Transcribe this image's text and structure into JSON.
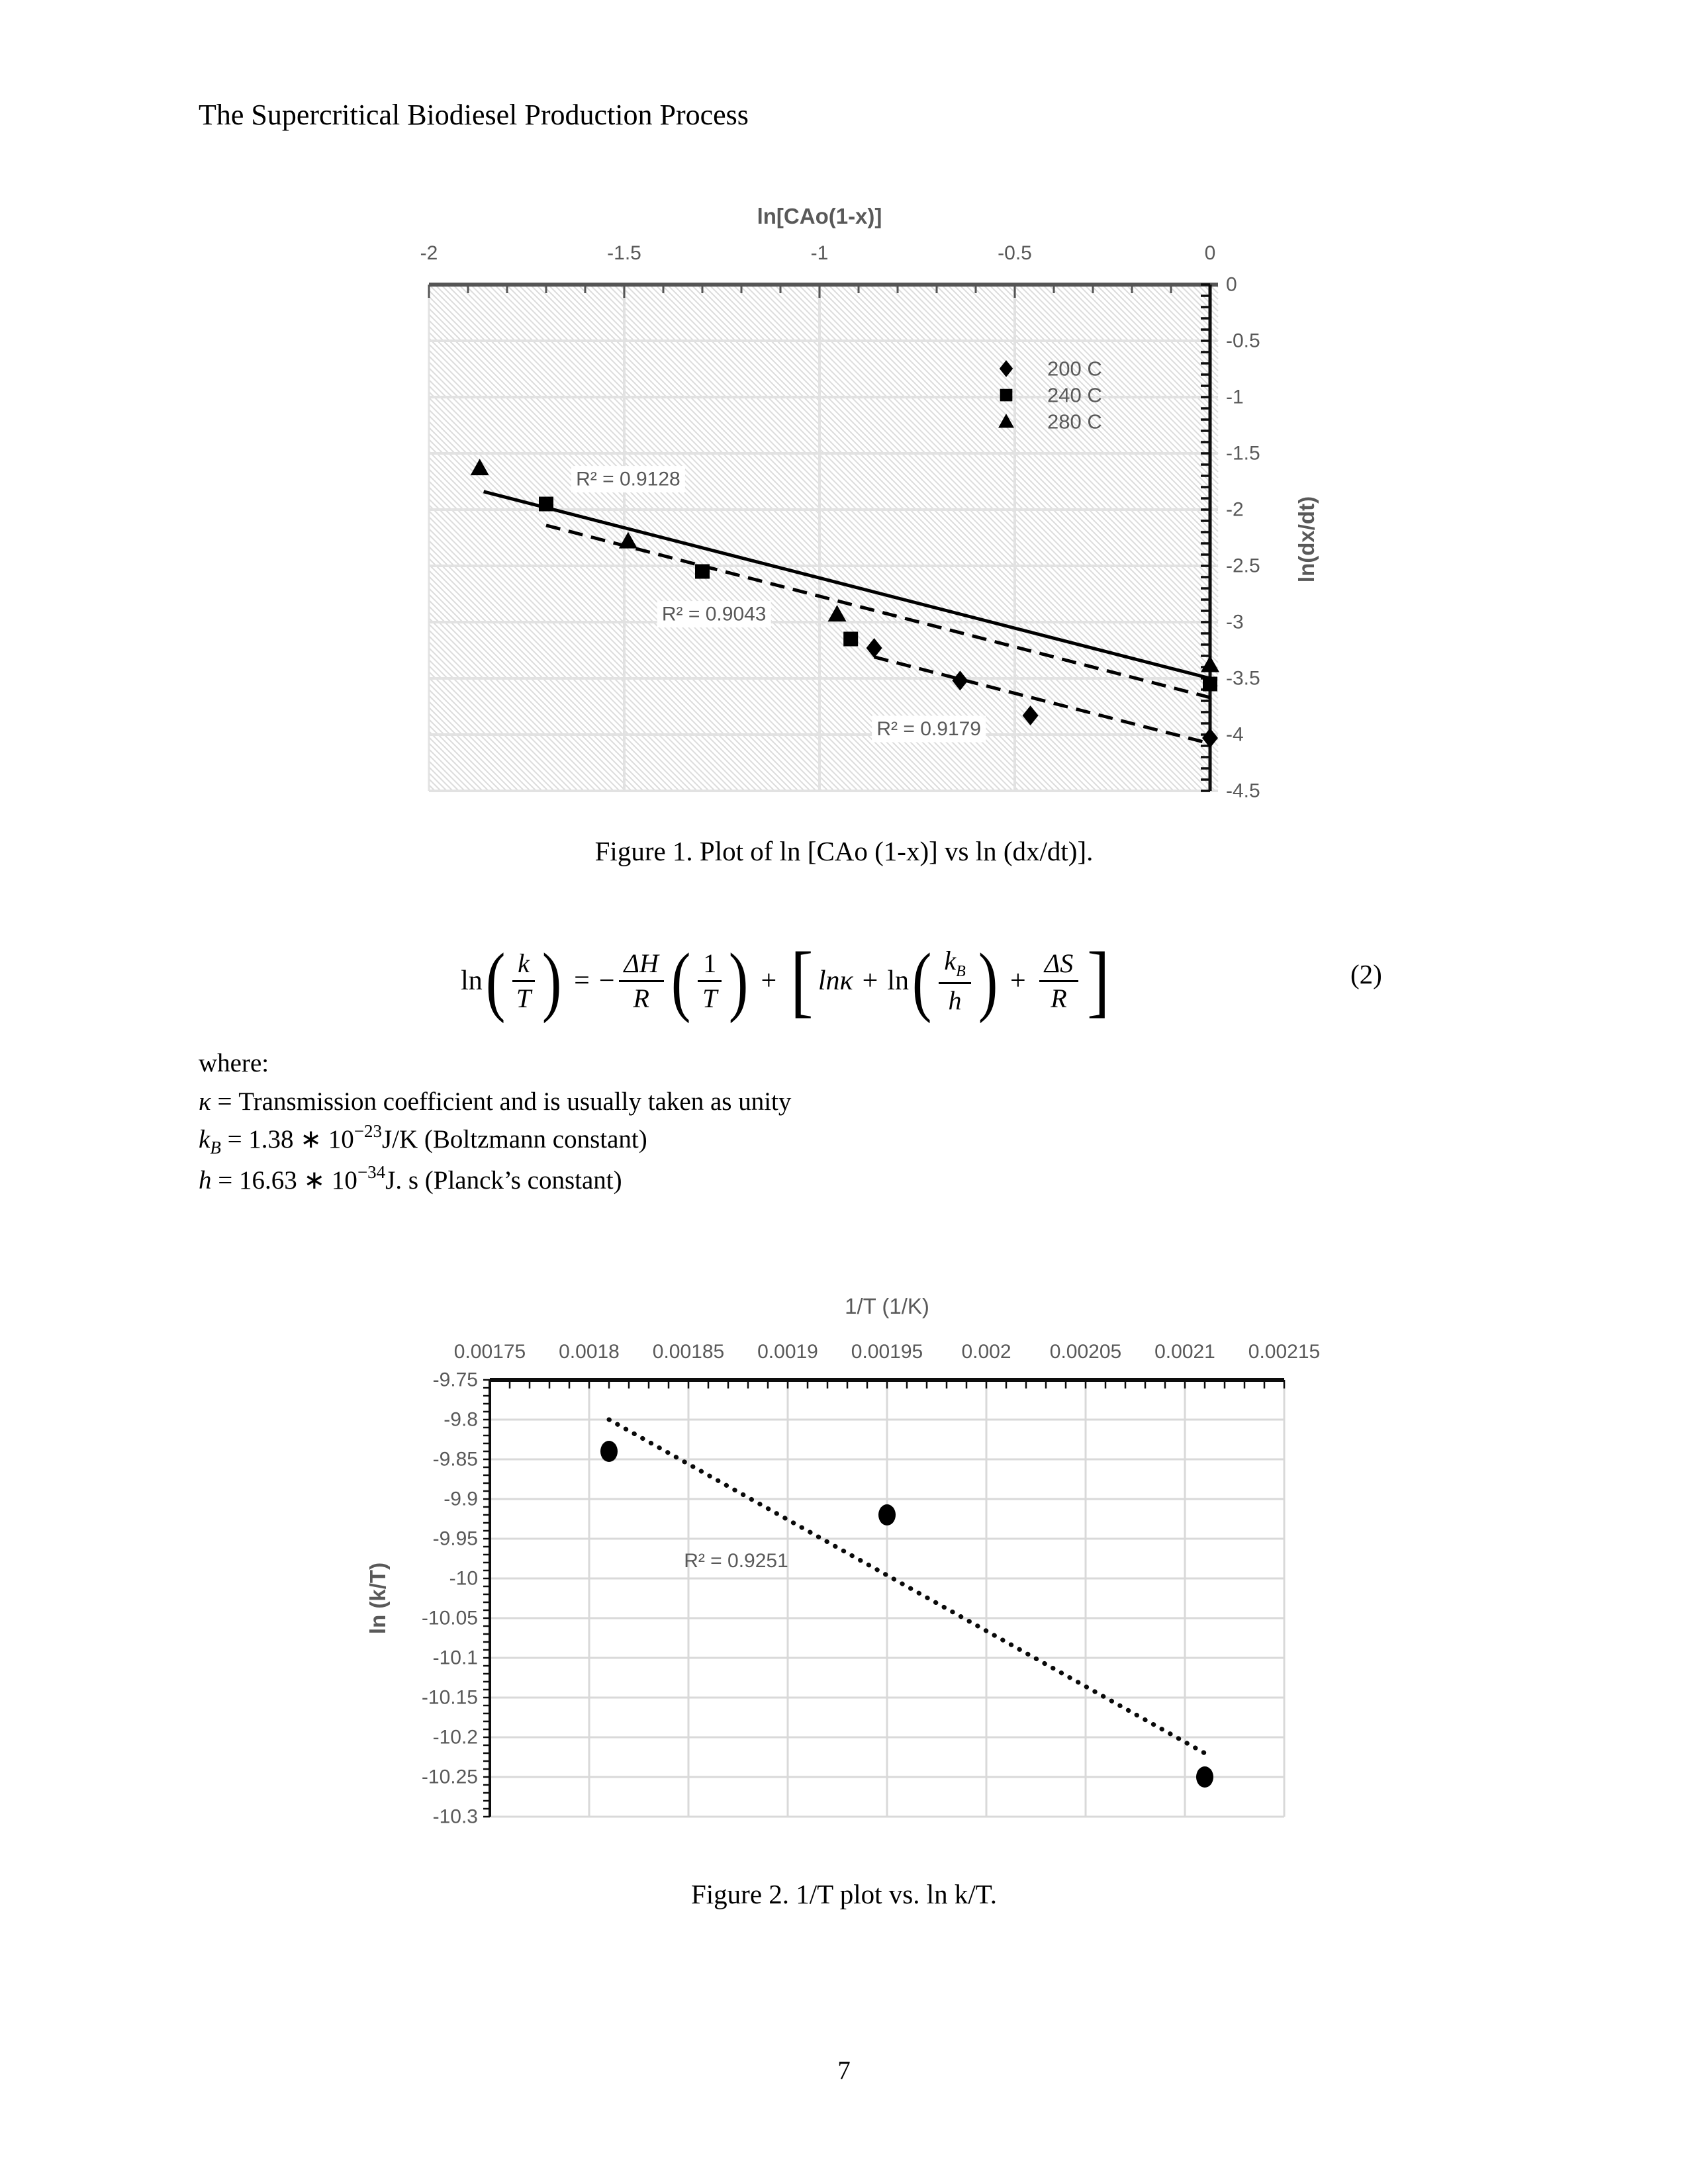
{
  "page": {
    "title": "The Supercritical Biodiesel Production Process",
    "page_number": "7"
  },
  "colors": {
    "chart_text": "#595959",
    "axis_dark": "#555555",
    "axis_black": "#0d0d0d",
    "gridline": "#e2e2e2",
    "gridline2": "#d9d9d9",
    "hatch": "#dcdcdc",
    "marker": "#000000"
  },
  "figure1": {
    "caption": "Figure 1. Plot of ln [CAo (1-x)] vs ln (dx/dt)].",
    "chart_data": {
      "type": "scatter",
      "plot_background": "diagonal-hatch",
      "x_axis": {
        "title": "ln[CAo(1-x)]",
        "position": "top",
        "min": -2,
        "max": 0,
        "tick_step": 0.5,
        "tick_labels": [
          "-2",
          "-1.5",
          "-1",
          "-0.5",
          "0"
        ]
      },
      "y_axis": {
        "title": "ln(dx/dt)",
        "position": "right",
        "min": -4.5,
        "max": 0,
        "tick_step": 0.5,
        "tick_labels": [
          "0",
          "-0.5",
          "-1",
          "-1.5",
          "-2",
          "-2.5",
          "-3",
          "-3.5",
          "-4",
          "-4.5"
        ]
      },
      "legend": {
        "position": "inside-upper-right",
        "items": [
          {
            "marker": "diamond",
            "label": "200 C"
          },
          {
            "marker": "square",
            "label": "240 C"
          },
          {
            "marker": "triangle",
            "label": "280 C"
          }
        ]
      },
      "series": [
        {
          "name": "200 C",
          "marker": "diamond",
          "points": [
            [
              -0.86,
              -3.23
            ],
            [
              -0.64,
              -3.52
            ],
            [
              -0.46,
              -3.83
            ],
            [
              0,
              -4.03
            ]
          ]
        },
        {
          "name": "240 C",
          "marker": "square",
          "points": [
            [
              -1.7,
              -1.95
            ],
            [
              -1.3,
              -2.55
            ],
            [
              -0.92,
              -3.15
            ],
            [
              0,
              -3.55
            ]
          ]
        },
        {
          "name": "280 C",
          "marker": "triangle",
          "points": [
            [
              -1.87,
              -1.63
            ],
            [
              -1.49,
              -2.28
            ],
            [
              -0.955,
              -2.93
            ],
            [
              0,
              -3.38
            ]
          ]
        }
      ],
      "trendlines": [
        {
          "series": "280 C",
          "style": "solid",
          "from": [
            -1.86,
            -1.84
          ],
          "to": [
            0,
            -3.5
          ]
        },
        {
          "series": "240 C",
          "style": "dashed",
          "from": [
            -1.7,
            -2.14
          ],
          "to": [
            0,
            -3.67
          ]
        },
        {
          "series": "200 C",
          "style": "dashed",
          "from": [
            -0.86,
            -3.31
          ],
          "to": [
            0,
            -4.08
          ]
        }
      ],
      "annotations": [
        {
          "text": "R² = 0.9128",
          "x": -1.49,
          "y": -1.73
        },
        {
          "text": "R² = 0.9043",
          "x": -1.27,
          "y": -2.93
        },
        {
          "text": "R² = 0.9179",
          "x": -0.72,
          "y": -3.95
        }
      ]
    }
  },
  "equation": {
    "ln1": "ln",
    "lp1": "(",
    "num1": "k",
    "den1": "T",
    "rp1": ")",
    "equals": "=",
    "minus": "−",
    "num2": "ΔH",
    "den2": "R",
    "lp2": "(",
    "num3": "1",
    "den3": "T",
    "rp2": ")",
    "plus1": "+",
    "lbr": "[",
    "lnk": "lnκ",
    "plus2": "+",
    "ln2": "ln",
    "lp3": "(",
    "num4_main": "k",
    "num4_sub": "B",
    "den4": "h",
    "rp3": ")",
    "plus3": "+",
    "num5": "ΔS",
    "den5": "R",
    "rbr": "]",
    "number": "(2)"
  },
  "where_block": {
    "intro": "where:",
    "kappa_line": {
      "symbol": "κ",
      "rest": " = Transmission coefficient and is usually taken as unity"
    },
    "kb_line": {
      "symbol": "k",
      "sub": "B",
      "mid": " =  1.38 ∗ 10",
      "sup": "−23",
      "rest": "J/K (Boltzmann constant)"
    },
    "h_line": {
      "symbol": "h",
      "mid": " =  16.63 ∗ 10",
      "sup": "−34",
      "rest": "J. s (Planck’s constant)"
    }
  },
  "figure2": {
    "caption": "Figure 2. 1/T plot vs. ln k/T.",
    "chart_data": {
      "type": "scatter",
      "plot_background": "white",
      "x_axis": {
        "title": "1/T (1/K)",
        "position": "top",
        "min": 0.00175,
        "max": 0.00215,
        "tick_step": 5e-05,
        "tick_labels": [
          "0.00175",
          "0.0018",
          "0.00185",
          "0.0019",
          "0.00195",
          "0.002",
          "0.00205",
          "0.0021",
          "0.00215"
        ]
      },
      "y_axis": {
        "title": "ln (k/T)",
        "position": "left",
        "min": -10.3,
        "max": -9.75,
        "tick_step": 0.05,
        "tick_labels": [
          "-9.75",
          "-9.8",
          "-9.85",
          "-9.9",
          "-9.95",
          "-10",
          "-10.05",
          "-10.1",
          "-10.15",
          "-10.2",
          "-10.25",
          "-10.3"
        ]
      },
      "series": [
        {
          "name": "ln k/T",
          "marker": "circle",
          "points": [
            [
              0.00181,
              -9.84
            ],
            [
              0.00195,
              -9.92
            ],
            [
              0.00211,
              -10.25
            ]
          ]
        }
      ],
      "trendlines": [
        {
          "style": "dotted",
          "from": [
            0.00181,
            -9.8
          ],
          "to": [
            0.00211,
            -10.22
          ]
        }
      ],
      "annotations": [
        {
          "text": "R² = 0.9251",
          "x": 0.001874,
          "y": -9.978
        }
      ]
    }
  }
}
